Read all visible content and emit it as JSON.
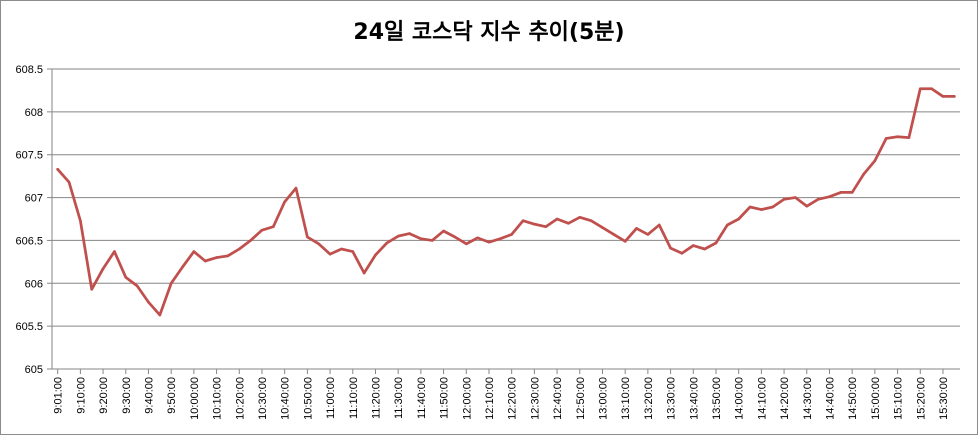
{
  "chart_data": {
    "type": "line",
    "title": "24일 코스닥 지수 추이(5분)",
    "xlabel": "",
    "ylabel": "",
    "ylim": [
      605,
      608.5
    ],
    "y_ticks": [
      "605",
      "605.5",
      "606",
      "606.5",
      "607",
      "607.5",
      "608",
      "608.5"
    ],
    "x_tick_labels": [
      "9:01:00",
      "9:10:00",
      "9:20:00",
      "9:30:00",
      "9:40:00",
      "9:50:00",
      "10:00:00",
      "10:10:00",
      "10:20:00",
      "10:30:00",
      "10:40:00",
      "10:50:00",
      "11:00:00",
      "11:10:00",
      "11:20:00",
      "11:30:00",
      "11:40:00",
      "11:50:00",
      "12:00:00",
      "12:10:00",
      "12:20:00",
      "12:30:00",
      "12:40:00",
      "12:50:00",
      "13:00:00",
      "13:10:00",
      "13:20:00",
      "13:30:00",
      "13:40:00",
      "13:50:00",
      "14:00:00",
      "14:10:00",
      "14:20:00",
      "14:30:00",
      "14:40:00",
      "14:50:00",
      "15:00:00",
      "15:10:00",
      "15:20:00",
      "15:30:00"
    ],
    "grid": true,
    "colors": {
      "line": "#c0504d",
      "grid": "#868686",
      "axis": "#868686"
    },
    "series": [
      {
        "values": [
          607.33,
          607.18,
          606.73,
          605.93,
          606.17,
          606.37,
          606.07,
          605.97,
          605.78,
          605.63,
          606.0,
          606.19,
          606.37,
          606.26,
          606.3,
          606.32,
          606.4,
          606.5,
          606.62,
          606.66,
          606.95,
          607.11,
          606.54,
          606.46,
          606.34,
          606.4,
          606.37,
          606.12,
          606.33,
          606.47,
          606.55,
          606.58,
          606.52,
          606.5,
          606.61,
          606.54,
          606.46,
          606.53,
          606.48,
          606.52,
          606.57,
          606.73,
          606.69,
          606.66,
          606.75,
          606.7,
          606.77,
          606.73,
          606.65,
          606.57,
          606.49,
          606.64,
          606.57,
          606.68,
          606.41,
          606.35,
          606.44,
          606.4,
          606.47,
          606.68,
          606.75,
          606.89,
          606.86,
          606.89,
          606.98,
          607.0,
          606.9,
          606.98,
          607.01,
          607.06,
          607.06,
          607.27,
          607.43,
          607.69,
          607.71,
          607.7,
          608.27,
          608.27,
          608.18,
          608.18
        ]
      }
    ]
  }
}
